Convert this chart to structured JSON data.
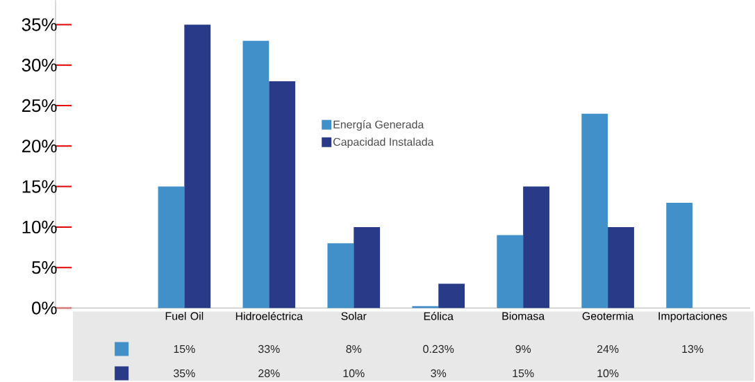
{
  "chart_data": {
    "type": "bar",
    "categories": [
      "Fuel Oil",
      "Hidroeléctrica",
      "Solar",
      "Eólica",
      "Biomasa",
      "Geotermia",
      "Importaciones"
    ],
    "series": [
      {
        "name": "Energía Generada",
        "color": "#4290c9",
        "values": [
          15,
          33,
          8,
          0.23,
          9,
          24,
          13
        ],
        "value_labels": [
          "15%",
          "33%",
          "8%",
          "0.23%",
          "9%",
          "24%",
          "13%"
        ]
      },
      {
        "name": "Capacidad Instalada",
        "color": "#283a88",
        "values": [
          35,
          28,
          10,
          3,
          15,
          10,
          null
        ],
        "value_labels": [
          "35%",
          "28%",
          "10%",
          "3%",
          "15%",
          "10%",
          null
        ]
      }
    ],
    "ylim": [
      0,
      38
    ],
    "yticks": [
      {
        "value": 0,
        "label": "0%"
      },
      {
        "value": 5,
        "label": "5%"
      },
      {
        "value": 10,
        "label": "10%"
      },
      {
        "value": 15,
        "label": "15%"
      },
      {
        "value": 20,
        "label": "20%"
      },
      {
        "value": 25,
        "label": "25%"
      },
      {
        "value": 30,
        "label": "30%"
      },
      {
        "value": 35,
        "label": "35%"
      }
    ],
    "grid": false,
    "legend": "top"
  }
}
